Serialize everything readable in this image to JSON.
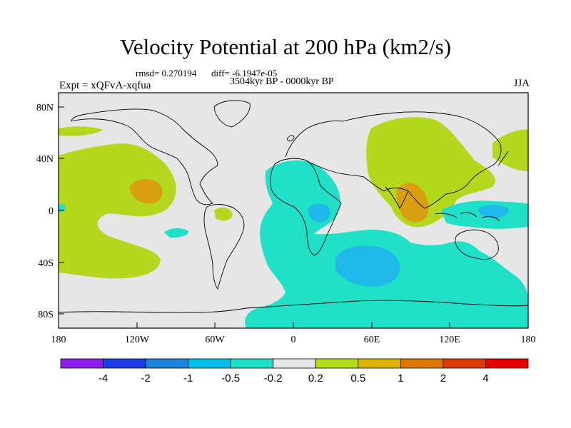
{
  "title": "Velocity Potential at 200 hPa (km2/s)",
  "stats": {
    "rmsd_label": "rmsd= 0.270194",
    "diff_label": "diff= -6.1947e-05"
  },
  "period": "3504kyr BP - 0000kyr BP",
  "experiment": "Expt = xQFvA-xqfua",
  "season": "JJA",
  "map": {
    "lat_ticks": [
      "80N",
      "40N",
      "0",
      "40S",
      "80S"
    ],
    "lon_ticks": [
      "180",
      "120W",
      "60W",
      "0",
      "60E",
      "120E",
      "180"
    ],
    "layers": {
      "land_mask": "continent-outlines",
      "positive": "positive-anomaly-regions",
      "negative": "negative-anomaly-regions"
    }
  },
  "colorbar": {
    "labels": [
      "-4",
      "-2",
      "-1",
      "-0.5",
      "-0.2",
      "0.2",
      "0.5",
      "1",
      "2",
      "4"
    ],
    "colors": [
      "#8a1ee6",
      "#1e3ce6",
      "#1e82dc",
      "#00c0e6",
      "#1ee0c8",
      "#e6e6e6",
      "#b4dc14",
      "#dcb400",
      "#dc7800",
      "#dc3c00",
      "#e60000"
    ]
  },
  "fill_colors": {
    "ocean_bg": "#e6e6e6",
    "pos_weak": "#b4d81e",
    "pos_mid": "#d8a010",
    "neg_weak": "#20e0c8",
    "neg_mid": "#20b8e8"
  }
}
